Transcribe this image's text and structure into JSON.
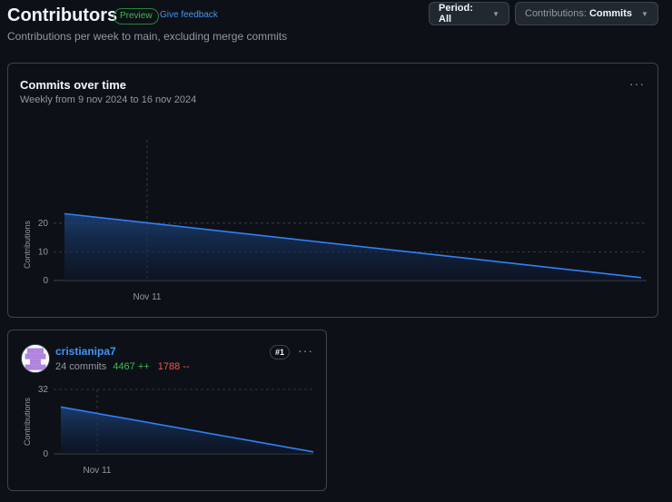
{
  "header": {
    "title": "Contributors",
    "preview_badge": "Preview",
    "feedback_link": "Give feedback",
    "subtitle": "Contributions per week to main, excluding merge commits"
  },
  "controls": {
    "period_label": "Period: All",
    "contributions_prefix": "Contributions:",
    "contributions_value": "Commits"
  },
  "main_chart": {
    "title": "Commits over time",
    "subtitle": "Weekly from 9 nov 2024 to 16 nov 2024",
    "menu_icon": "kebab-horizontal-icon"
  },
  "contributor": {
    "name": "cristianipa7",
    "commits": "24 commits",
    "additions": "4467 ++",
    "deletions": "1788 --",
    "rank": "#1",
    "menu_icon": "kebab-horizontal-icon",
    "avatar_icon": "identicon-avatar"
  },
  "colors": {
    "background": "#0d1117",
    "line": "#2f81f7",
    "additions": "#3fb950",
    "deletions": "#f85149",
    "link": "#4493f8"
  },
  "chart_data": [
    {
      "type": "area",
      "title": "Commits over time",
      "ylabel": "Contributions",
      "xlabel": "",
      "x_tick_labels": [
        "Nov 11"
      ],
      "y_ticks": [
        0,
        10,
        20
      ],
      "ylim": [
        0,
        25
      ],
      "series": [
        {
          "points": [
            {
              "x": "2024-11-09",
              "y": 23.3
            },
            {
              "x": "2024-11-16",
              "y": 1.0
            }
          ]
        }
      ],
      "grid": true
    },
    {
      "type": "area",
      "title": "",
      "ylabel": "Contributions",
      "xlabel": "",
      "x_tick_labels": [
        "Nov 11"
      ],
      "y_ticks": [
        0,
        32
      ],
      "ylim": [
        0,
        32
      ],
      "series": [
        {
          "points": [
            {
              "x": "2024-11-09",
              "y": 23.3
            },
            {
              "x": "2024-11-16",
              "y": 1.0
            }
          ]
        }
      ],
      "grid": true
    }
  ]
}
